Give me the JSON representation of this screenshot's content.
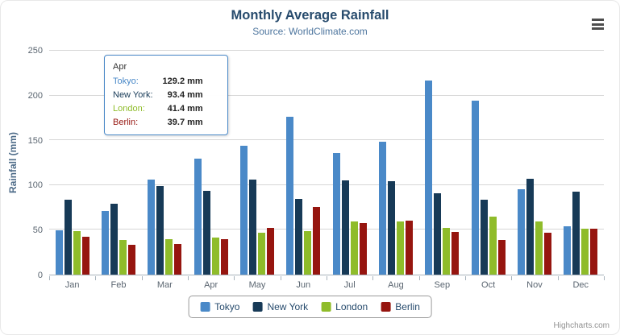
{
  "chart_data": {
    "type": "bar",
    "title": "Monthly Average Rainfall",
    "subtitle": "Source: WorldClimate.com",
    "xlabel": "",
    "ylabel": "Rainfall (mm)",
    "ylim": [
      0,
      250
    ],
    "yticks": [
      0,
      50,
      100,
      150,
      200,
      250
    ],
    "grid": true,
    "legend_position": "bottom",
    "categories": [
      "Jan",
      "Feb",
      "Mar",
      "Apr",
      "May",
      "Jun",
      "Jul",
      "Aug",
      "Sep",
      "Oct",
      "Nov",
      "Dec"
    ],
    "series": [
      {
        "name": "Tokyo",
        "color": "#4a89c8",
        "values": [
          49.9,
          71.5,
          106.4,
          129.2,
          144.0,
          176.0,
          135.6,
          148.5,
          216.4,
          194.1,
          95.6,
          54.4
        ]
      },
      {
        "name": "New York",
        "color": "#173a57",
        "values": [
          83.6,
          78.8,
          98.5,
          93.4,
          106.0,
          84.5,
          105.0,
          104.3,
          91.2,
          83.5,
          106.6,
          92.3
        ]
      },
      {
        "name": "London",
        "color": "#8fbc2a",
        "values": [
          48.9,
          38.8,
          39.3,
          41.4,
          47.0,
          48.3,
          59.0,
          59.6,
          52.4,
          65.2,
          59.3,
          51.2
        ]
      },
      {
        "name": "Berlin",
        "color": "#96150f",
        "values": [
          42.4,
          33.2,
          34.5,
          39.7,
          52.6,
          75.5,
          57.4,
          60.4,
          47.6,
          39.1,
          46.8,
          51.1
        ]
      }
    ]
  },
  "tooltip": {
    "header": "Apr",
    "border_color": "#4a89c8",
    "rows": [
      {
        "name": "Tokyo:",
        "value": "129.2 mm",
        "color": "#4a89c8"
      },
      {
        "name": "New York:",
        "value": "93.4 mm",
        "color": "#173a57"
      },
      {
        "name": "London:",
        "value": "41.4 mm",
        "color": "#8fbc2a"
      },
      {
        "name": "Berlin:",
        "value": "39.7 mm",
        "color": "#96150f"
      }
    ]
  },
  "menu": {
    "icon": "hamburger-menu-icon"
  },
  "credits": {
    "label": "Highcharts.com"
  }
}
